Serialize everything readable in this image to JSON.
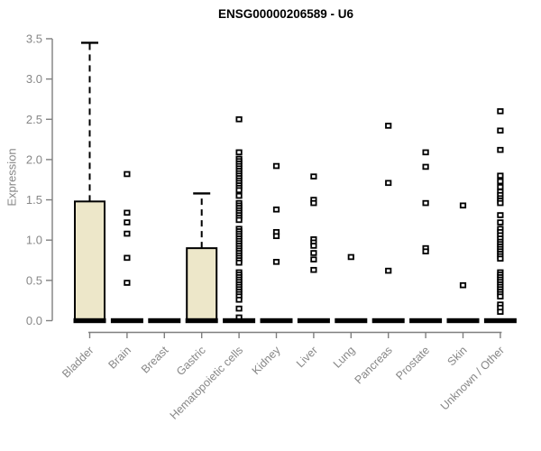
{
  "title": "ENSG00000206589 - U6",
  "chart_data": {
    "type": "boxplot",
    "title": "ENSG00000206589 - U6",
    "xlabel": "",
    "ylabel": "Expression",
    "ylim": [
      0.0,
      3.5
    ],
    "yticks": [
      0.0,
      0.5,
      1.0,
      1.5,
      2.0,
      2.5,
      3.0,
      3.5
    ],
    "grid": false,
    "legend": "none",
    "box_fill_color": "#EDE7C9",
    "box_stroke_color": "#000000",
    "axis_color": "#7f7f7f",
    "tick_label_color": "#878787",
    "title_color": "#000000",
    "categories": [
      "Bladder",
      "Brain",
      "Breast",
      "Gastric",
      "Hematopoietic cells",
      "Kidney",
      "Liver",
      "Lung",
      "Pancreas",
      "Prostate",
      "Skin",
      "Unknown / Other"
    ],
    "series": [
      {
        "category": "Bladder",
        "whisker_low": 0,
        "q1": 0,
        "median": 0,
        "q3": 1.48,
        "whisker_high": 3.45,
        "outliers": []
      },
      {
        "category": "Brain",
        "whisker_low": 0,
        "q1": 0,
        "median": 0,
        "q3": 0,
        "whisker_high": 0,
        "outliers": [
          1.82,
          1.34,
          1.22,
          1.08,
          0.78,
          0.47
        ]
      },
      {
        "category": "Breast",
        "whisker_low": 0,
        "q1": 0,
        "median": 0,
        "q3": 0,
        "whisker_high": 0,
        "outliers": []
      },
      {
        "category": "Gastric",
        "whisker_low": 0,
        "q1": 0,
        "median": 0,
        "q3": 0.9,
        "whisker_high": 1.58,
        "outliers": []
      },
      {
        "category": "Hematopoietic cells",
        "whisker_low": 0,
        "q1": 0,
        "median": 0,
        "q3": 0,
        "whisker_high": 0,
        "outliers": [
          2.5,
          2.09,
          2.01,
          1.98,
          1.95,
          1.92,
          1.89,
          1.86,
          1.83,
          1.8,
          1.77,
          1.74,
          1.71,
          1.68,
          1.65,
          1.62,
          1.55,
          1.46,
          1.43,
          1.4,
          1.37,
          1.34,
          1.31,
          1.28,
          1.25,
          1.14,
          1.11,
          1.08,
          1.05,
          1.02,
          0.99,
          0.96,
          0.93,
          0.9,
          0.87,
          0.84,
          0.81,
          0.78,
          0.75,
          0.72,
          0.6,
          0.57,
          0.54,
          0.51,
          0.48,
          0.45,
          0.42,
          0.39,
          0.36,
          0.33,
          0.3,
          0.26,
          0.15,
          0.04
        ]
      },
      {
        "category": "Kidney",
        "whisker_low": 0,
        "q1": 0,
        "median": 0,
        "q3": 0,
        "whisker_high": 0,
        "outliers": [
          1.92,
          1.38,
          1.1,
          1.05,
          0.73
        ]
      },
      {
        "category": "Liver",
        "whisker_low": 0,
        "q1": 0,
        "median": 0,
        "q3": 0,
        "whisker_high": 0,
        "outliers": [
          1.79,
          1.5,
          1.46,
          1.01,
          0.97,
          0.93,
          0.84,
          0.76,
          0.63
        ]
      },
      {
        "category": "Lung",
        "whisker_low": 0,
        "q1": 0,
        "median": 0,
        "q3": 0,
        "whisker_high": 0,
        "outliers": [
          0.79
        ]
      },
      {
        "category": "Pancreas",
        "whisker_low": 0,
        "q1": 0,
        "median": 0,
        "q3": 0,
        "whisker_high": 0,
        "outliers": [
          2.42,
          1.71,
          0.62
        ]
      },
      {
        "category": "Prostate",
        "whisker_low": 0,
        "q1": 0,
        "median": 0,
        "q3": 0,
        "whisker_high": 0,
        "outliers": [
          2.09,
          1.91,
          1.46,
          0.9,
          0.86
        ]
      },
      {
        "category": "Skin",
        "whisker_low": 0,
        "q1": 0,
        "median": 0,
        "q3": 0,
        "whisker_high": 0,
        "outliers": [
          1.43,
          0.44
        ]
      },
      {
        "category": "Unknown / Other",
        "whisker_low": 0,
        "q1": 0,
        "median": 0,
        "q3": 0,
        "whisker_high": 0,
        "outliers": [
          2.6,
          2.36,
          2.12,
          1.8,
          1.73,
          1.66,
          1.6,
          1.56,
          1.52,
          1.49,
          1.46,
          1.31,
          1.22,
          1.14,
          1.1,
          1.06,
          1.02,
          0.98,
          0.95,
          0.92,
          0.89,
          0.86,
          0.83,
          0.8,
          0.77,
          0.6,
          0.57,
          0.54,
          0.51,
          0.48,
          0.45,
          0.42,
          0.39,
          0.36,
          0.33,
          0.3,
          0.2,
          0.16,
          0.11
        ]
      }
    ]
  }
}
